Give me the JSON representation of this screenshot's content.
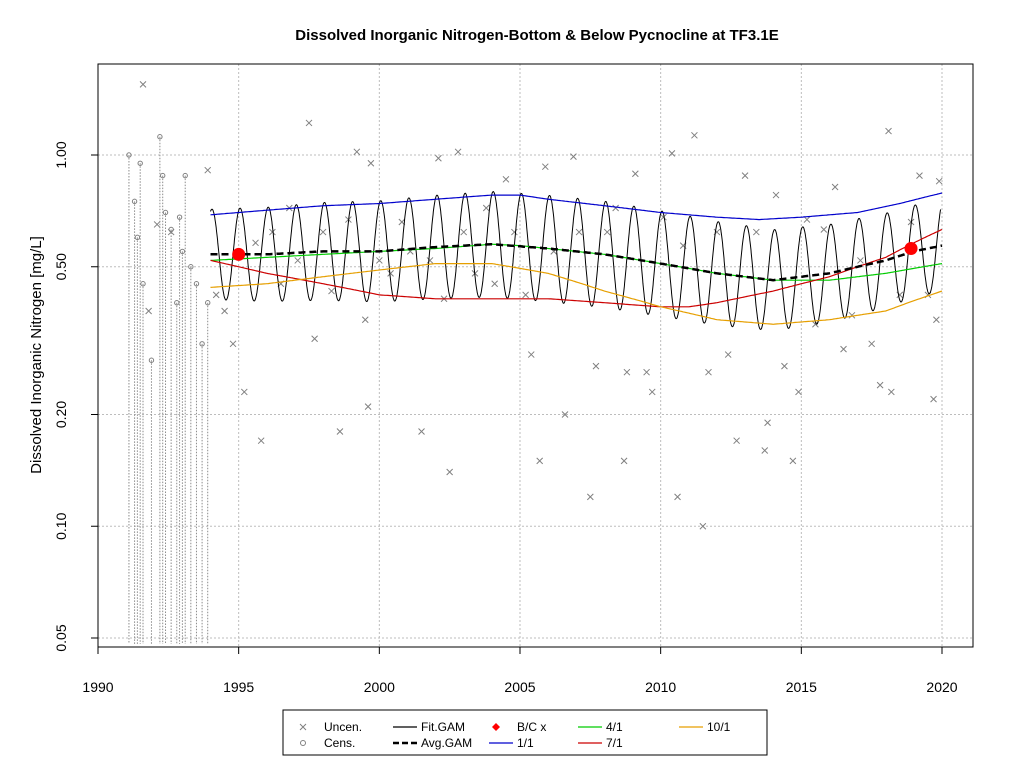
{
  "chart_data": {
    "type": "line",
    "title": "Dissolved Inorganic Nitrogen-Bottom & Below Pycnocline at TF3.1E",
    "ylabel": "Dissolved Inorganic Nitrogen [mg/L]",
    "xlabel": "",
    "x_axis": {
      "min": 1990,
      "max": 2020,
      "ticks": [
        1990,
        1995,
        2000,
        2005,
        2010,
        2015,
        2020
      ]
    },
    "y_axis": {
      "scale": "log",
      "min": 0.05,
      "max": 1.6,
      "ticks": [
        0.05,
        0.1,
        0.2,
        0.5,
        1.0
      ],
      "tick_labels": [
        "0.05",
        "0.10",
        "0.20",
        "0.50",
        "1.00"
      ]
    },
    "grid": true,
    "legend": {
      "placement": "bottom",
      "entries": [
        {
          "label": "Uncen.",
          "symbol": "x",
          "color": "#808080"
        },
        {
          "label": "Cens.",
          "symbol": "circle",
          "color": "#808080"
        },
        {
          "label": "Fit.GAM",
          "symbol": "line",
          "color": "#000000"
        },
        {
          "label": "Avg.GAM",
          "symbol": "dashed",
          "color": "#000000"
        },
        {
          "label": "B/C x",
          "symbol": "diamond",
          "color": "#ff0000"
        },
        {
          "label": "1/1",
          "symbol": "line",
          "color": "#0000cc"
        },
        {
          "label": "4/1",
          "symbol": "line",
          "color": "#00cc00"
        },
        {
          "label": "7/1",
          "symbol": "line",
          "color": "#cc0000"
        },
        {
          "label": "10/1",
          "symbol": "line",
          "color": "#e69f00"
        }
      ]
    },
    "colors": {
      "uncen": "#808080",
      "cens": "#808080",
      "fit": "#000000",
      "avg": "#000000",
      "bc": "#ff0000",
      "s1_1": "#0000cc",
      "s4_1": "#00cc00",
      "s7_1": "#cc0000",
      "s10_1": "#e69f00"
    },
    "series": [
      {
        "name": "1/1",
        "x": [
          1994,
          1996,
          1998,
          2000,
          2002,
          2004,
          2005,
          2006,
          2008,
          2010,
          2012,
          2013.5,
          2015,
          2017,
          2018.5,
          2020
        ],
        "values": [
          0.69,
          0.71,
          0.73,
          0.74,
          0.76,
          0.78,
          0.78,
          0.76,
          0.73,
          0.7,
          0.68,
          0.67,
          0.68,
          0.7,
          0.74,
          0.79
        ]
      },
      {
        "name": "4/1",
        "x": [
          1994,
          1996,
          1998,
          2000,
          2002,
          2004,
          2005,
          2006,
          2008,
          2010,
          2012,
          2014,
          2016,
          2018,
          2020
        ],
        "values": [
          0.52,
          0.53,
          0.54,
          0.55,
          0.56,
          0.575,
          0.57,
          0.56,
          0.54,
          0.51,
          0.48,
          0.46,
          0.46,
          0.48,
          0.51
        ]
      },
      {
        "name": "7/1",
        "x": [
          1994,
          1996,
          1998,
          2000,
          2002,
          2004,
          2006,
          2008,
          2010,
          2011,
          2012,
          2014,
          2016,
          2018,
          2019,
          2020
        ],
        "values": [
          0.52,
          0.48,
          0.45,
          0.42,
          0.41,
          0.41,
          0.41,
          0.4,
          0.39,
          0.39,
          0.4,
          0.43,
          0.47,
          0.53,
          0.58,
          0.63
        ]
      },
      {
        "name": "10/1",
        "x": [
          1994,
          1996,
          1998,
          2000,
          2002,
          2004,
          2006,
          2008,
          2010,
          2012,
          2014,
          2016,
          2018,
          2020
        ],
        "values": [
          0.44,
          0.45,
          0.47,
          0.49,
          0.51,
          0.51,
          0.48,
          0.43,
          0.39,
          0.36,
          0.35,
          0.36,
          0.38,
          0.43
        ]
      },
      {
        "name": "Avg.GAM",
        "x": [
          1994,
          1996,
          1998,
          2000,
          2002,
          2004,
          2006,
          2008,
          2010,
          2012,
          2014,
          2016,
          2018,
          2019,
          2020
        ],
        "values": [
          0.54,
          0.54,
          0.55,
          0.55,
          0.565,
          0.575,
          0.56,
          0.54,
          0.51,
          0.48,
          0.46,
          0.48,
          0.52,
          0.55,
          0.57
        ]
      }
    ],
    "bc_points": [
      {
        "x": 1995.0,
        "y": 0.54
      },
      {
        "x": 2018.9,
        "y": 0.56
      }
    ],
    "uncensored_points": [
      [
        1991.6,
        1.55
      ],
      [
        1991.8,
        0.38
      ],
      [
        1992.1,
        0.65
      ],
      [
        1992.6,
        0.62
      ],
      [
        1993.9,
        0.91
      ],
      [
        1994.2,
        0.42
      ],
      [
        1994.5,
        0.38
      ],
      [
        1994.8,
        0.31
      ],
      [
        1995.2,
        0.23
      ],
      [
        1995.6,
        0.58
      ],
      [
        1995.8,
        0.17
      ],
      [
        1996.2,
        0.62
      ],
      [
        1996.5,
        0.45
      ],
      [
        1996.8,
        0.72
      ],
      [
        1997.1,
        0.52
      ],
      [
        1997.5,
        1.22
      ],
      [
        1997.7,
        0.32
      ],
      [
        1998.0,
        0.62
      ],
      [
        1998.3,
        0.43
      ],
      [
        1998.6,
        0.18
      ],
      [
        1998.9,
        0.67
      ],
      [
        1999.2,
        1.02
      ],
      [
        1999.5,
        0.36
      ],
      [
        1999.6,
        0.21
      ],
      [
        1999.7,
        0.95
      ],
      [
        2000.0,
        0.52
      ],
      [
        2000.4,
        0.48
      ],
      [
        2000.8,
        0.66
      ],
      [
        2001.1,
        0.55
      ],
      [
        2001.5,
        0.18
      ],
      [
        2001.8,
        0.52
      ],
      [
        2002.1,
        0.98
      ],
      [
        2002.3,
        0.41
      ],
      [
        2002.5,
        0.14
      ],
      [
        2002.8,
        1.02
      ],
      [
        2003.0,
        0.62
      ],
      [
        2003.4,
        0.48
      ],
      [
        2003.8,
        0.72
      ],
      [
        2004.1,
        0.45
      ],
      [
        2004.5,
        0.86
      ],
      [
        2004.8,
        0.62
      ],
      [
        2005.2,
        0.42
      ],
      [
        2005.4,
        0.29
      ],
      [
        2005.7,
        0.15
      ],
      [
        2005.9,
        0.93
      ],
      [
        2006.2,
        0.55
      ],
      [
        2006.6,
        0.2
      ],
      [
        2006.9,
        0.99
      ],
      [
        2007.1,
        0.62
      ],
      [
        2007.5,
        0.12
      ],
      [
        2007.7,
        0.27
      ],
      [
        2008.1,
        0.62
      ],
      [
        2008.4,
        0.72
      ],
      [
        2008.7,
        0.15
      ],
      [
        2008.8,
        0.26
      ],
      [
        2009.1,
        0.89
      ],
      [
        2009.5,
        0.26
      ],
      [
        2009.7,
        0.23
      ],
      [
        2010.1,
        0.68
      ],
      [
        2010.4,
        1.01
      ],
      [
        2010.6,
        0.12
      ],
      [
        2010.8,
        0.57
      ],
      [
        2011.2,
        1.13
      ],
      [
        2011.5,
        0.1
      ],
      [
        2011.7,
        0.26
      ],
      [
        2012.0,
        0.62
      ],
      [
        2012.4,
        0.29
      ],
      [
        2012.7,
        0.17
      ],
      [
        2013.0,
        0.88
      ],
      [
        2013.4,
        0.62
      ],
      [
        2013.7,
        0.16
      ],
      [
        2013.8,
        0.19
      ],
      [
        2014.1,
        0.78
      ],
      [
        2014.4,
        0.27
      ],
      [
        2014.7,
        0.15
      ],
      [
        2014.9,
        0.23
      ],
      [
        2015.2,
        0.67
      ],
      [
        2015.5,
        0.35
      ],
      [
        2015.8,
        0.63
      ],
      [
        2016.2,
        0.82
      ],
      [
        2016.5,
        0.3
      ],
      [
        2016.8,
        0.37
      ],
      [
        2017.1,
        0.52
      ],
      [
        2017.5,
        0.31
      ],
      [
        2017.8,
        0.24
      ],
      [
        2018.1,
        1.16
      ],
      [
        2018.2,
        0.23
      ],
      [
        2018.5,
        0.42
      ],
      [
        2018.9,
        0.66
      ],
      [
        2019.2,
        0.88
      ],
      [
        2019.5,
        0.42
      ],
      [
        2019.7,
        0.22
      ],
      [
        2019.8,
        0.36
      ],
      [
        2019.9,
        0.85
      ]
    ],
    "censored_points": [
      [
        1991.1,
        1.0
      ],
      [
        1991.3,
        0.75
      ],
      [
        1991.4,
        0.6
      ],
      [
        1991.5,
        0.95
      ],
      [
        1991.6,
        0.45
      ],
      [
        1991.9,
        0.28
      ],
      [
        1992.2,
        1.12
      ],
      [
        1992.3,
        0.88
      ],
      [
        1992.4,
        0.7
      ],
      [
        1992.6,
        0.63
      ],
      [
        1992.8,
        0.4
      ],
      [
        1992.9,
        0.68
      ],
      [
        1993.0,
        0.55
      ],
      [
        1993.1,
        0.88
      ],
      [
        1993.3,
        0.5
      ],
      [
        1993.5,
        0.45
      ],
      [
        1993.7,
        0.31
      ],
      [
        1993.9,
        0.4
      ]
    ]
  }
}
